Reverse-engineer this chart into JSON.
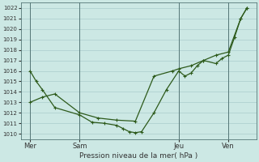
{
  "background_color": "#cce8e4",
  "grid_color": "#aacccc",
  "line_color": "#2d5a1b",
  "marker_color": "#2d5a1b",
  "title": "Pression niveau de la mer( hPa )",
  "ylim": [
    1009.5,
    1022.5
  ],
  "yticks": [
    1010,
    1011,
    1012,
    1013,
    1014,
    1015,
    1016,
    1017,
    1018,
    1019,
    1020,
    1021,
    1022
  ],
  "xtick_labels": [
    "Mer",
    "Sam",
    "Jeu",
    "Ven"
  ],
  "xtick_positions": [
    0,
    16,
    48,
    64
  ],
  "vlines": [
    0,
    16,
    48,
    64
  ],
  "series1": {
    "x": [
      0,
      2,
      4,
      8,
      16,
      20,
      24,
      28,
      30,
      32,
      34,
      36,
      40,
      44,
      48,
      50,
      52,
      54,
      56,
      60,
      62,
      64,
      66,
      68,
      70
    ],
    "y": [
      1016.0,
      1015.0,
      1014.2,
      1012.5,
      1011.8,
      1011.1,
      1011.0,
      1010.8,
      1010.5,
      1010.2,
      1010.1,
      1010.2,
      1012.0,
      1014.2,
      1016.0,
      1015.5,
      1015.8,
      1016.5,
      1017.0,
      1016.7,
      1017.2,
      1017.5,
      1019.2,
      1021.0,
      1022.0
    ]
  },
  "series2": {
    "x": [
      0,
      4,
      8,
      16,
      22,
      28,
      34,
      40,
      46,
      48,
      52,
      56,
      60,
      64,
      68,
      70
    ],
    "y": [
      1013.0,
      1013.5,
      1013.8,
      1012.0,
      1011.5,
      1011.3,
      1011.2,
      1015.5,
      1016.0,
      1016.2,
      1016.5,
      1017.0,
      1017.5,
      1017.8,
      1021.0,
      1022.0
    ]
  }
}
